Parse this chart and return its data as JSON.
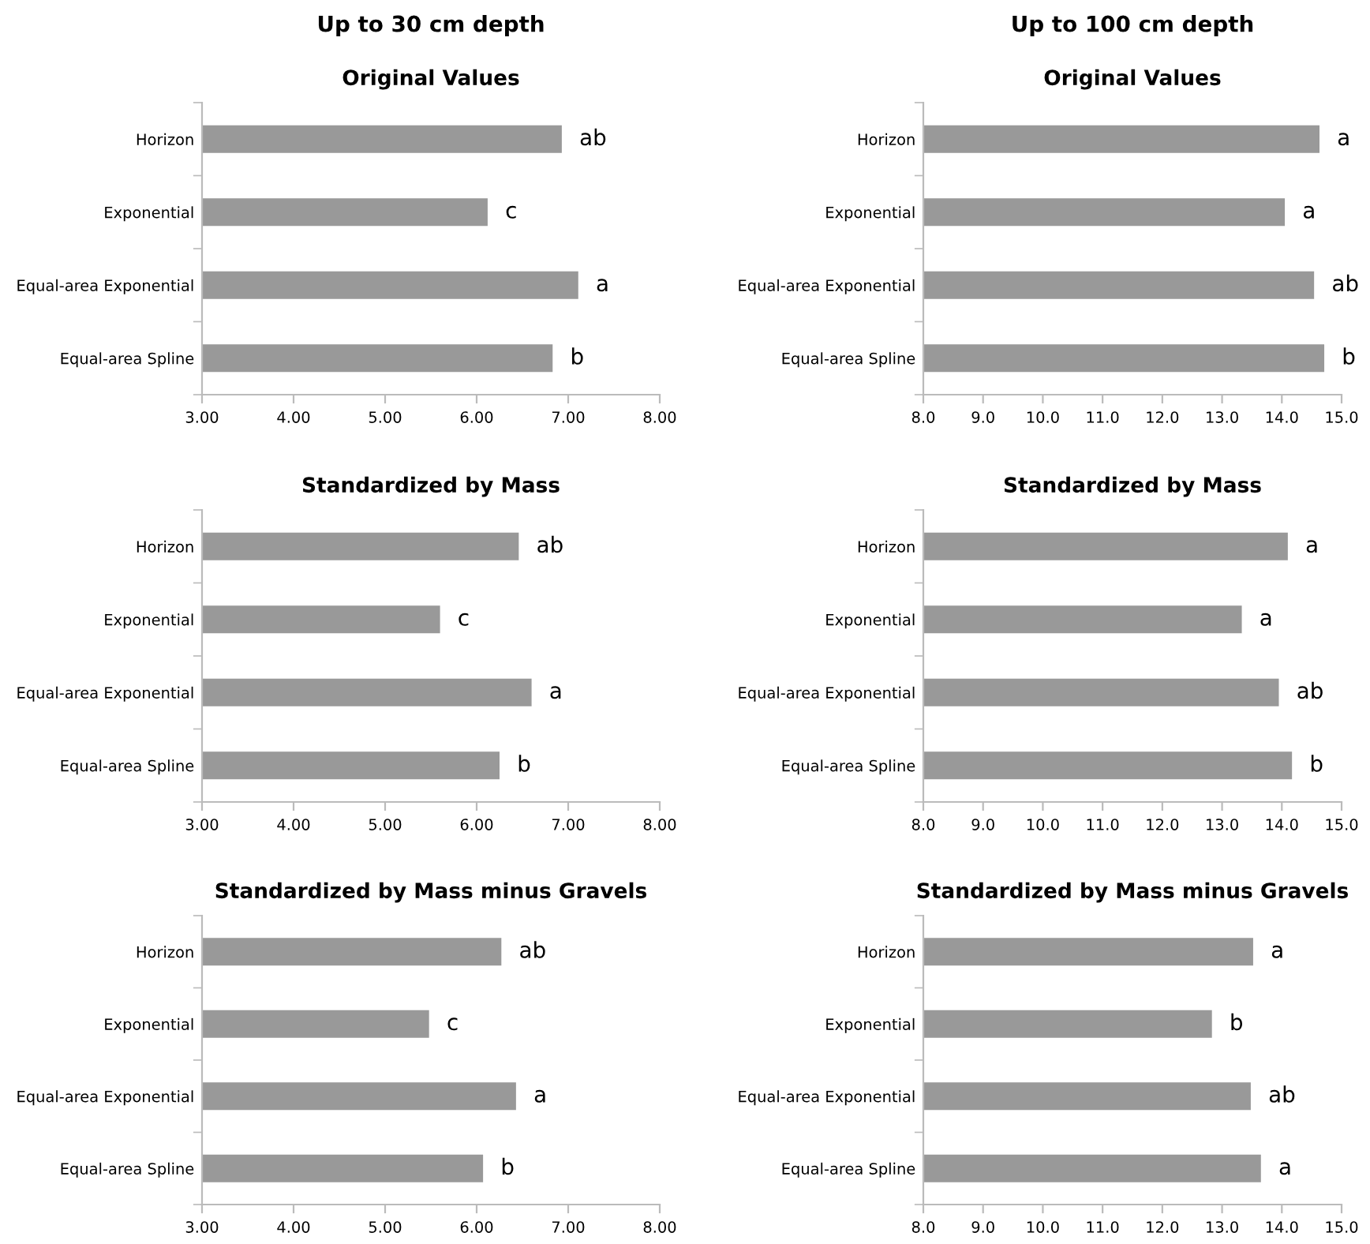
{
  "chart_data": [
    {
      "type": "bar",
      "orientation": "horizontal",
      "title": "Original Values",
      "annotations": [
        "Up to 30 cm depth"
      ],
      "categories": [
        "Horizon",
        "Exponential",
        "Equal-area Exponential",
        "Equal-area Spline"
      ],
      "values": [
        6.93,
        6.12,
        7.11,
        6.83
      ],
      "value_labels": [
        "ab",
        "c",
        "a",
        "b"
      ],
      "color": "#999999",
      "xlim": [
        3,
        8
      ],
      "xticks": [
        {
          "value": 3,
          "label": "3.00"
        },
        {
          "value": 4,
          "label": "4.00"
        },
        {
          "value": 5,
          "label": "5.00"
        },
        {
          "value": 6,
          "label": "6.00"
        },
        {
          "value": 7,
          "label": "7.00"
        },
        {
          "value": 8,
          "label": "8.00"
        }
      ],
      "grid": false,
      "legend": false
    },
    {
      "type": "bar",
      "orientation": "horizontal",
      "title": "Original Values",
      "annotations": [
        "Up to 100 cm depth"
      ],
      "categories": [
        "Horizon",
        "Exponential",
        "Equal-area Exponential",
        "Equal-area Spline"
      ],
      "values": [
        14.63,
        14.05,
        14.54,
        14.71
      ],
      "value_labels": [
        "a",
        "a",
        "ab",
        "b"
      ],
      "color": "#999999",
      "xlim": [
        8,
        15
      ],
      "xticks": [
        {
          "value": 8,
          "label": "8.0"
        },
        {
          "value": 9,
          "label": "9.0"
        },
        {
          "value": 10,
          "label": "10.0"
        },
        {
          "value": 11,
          "label": "11.0"
        },
        {
          "value": 12,
          "label": "12.0"
        },
        {
          "value": 13,
          "label": "13.0"
        },
        {
          "value": 14,
          "label": "14.0"
        },
        {
          "value": 15,
          "label": "15.0"
        }
      ],
      "grid": false,
      "legend": false
    },
    {
      "type": "bar",
      "orientation": "horizontal",
      "title": "Standardized by Mass",
      "categories": [
        "Horizon",
        "Exponential",
        "Equal-area Exponential",
        "Equal-area Spline"
      ],
      "values": [
        6.46,
        5.6,
        6.6,
        6.25
      ],
      "value_labels": [
        "ab",
        "c",
        "a",
        "b"
      ],
      "color": "#999999",
      "xlim": [
        3,
        8
      ],
      "xticks": [
        {
          "value": 3,
          "label": "3.00"
        },
        {
          "value": 4,
          "label": "4.00"
        },
        {
          "value": 5,
          "label": "5.00"
        },
        {
          "value": 6,
          "label": "6.00"
        },
        {
          "value": 7,
          "label": "7.00"
        },
        {
          "value": 8,
          "label": "8.00"
        }
      ],
      "grid": false,
      "legend": false
    },
    {
      "type": "bar",
      "orientation": "horizontal",
      "title": "Standardized by Mass",
      "categories": [
        "Horizon",
        "Exponential",
        "Equal-area Exponential",
        "Equal-area Spline"
      ],
      "values": [
        14.1,
        13.33,
        13.95,
        14.17
      ],
      "value_labels": [
        "a",
        "a",
        "ab",
        "b"
      ],
      "color": "#999999",
      "xlim": [
        8,
        15
      ],
      "xticks": [
        {
          "value": 8,
          "label": "8.0"
        },
        {
          "value": 9,
          "label": "9.0"
        },
        {
          "value": 10,
          "label": "10.0"
        },
        {
          "value": 11,
          "label": "11.0"
        },
        {
          "value": 12,
          "label": "12.0"
        },
        {
          "value": 13,
          "label": "13.0"
        },
        {
          "value": 14,
          "label": "14.0"
        },
        {
          "value": 15,
          "label": "15.0"
        }
      ],
      "grid": false,
      "legend": false
    },
    {
      "type": "bar",
      "orientation": "horizontal",
      "title": "Standardized by Mass minus Gravels",
      "categories": [
        "Horizon",
        "Exponential",
        "Equal-area Exponential",
        "Equal-area Spline"
      ],
      "values": [
        6.27,
        5.48,
        6.43,
        6.07
      ],
      "value_labels": [
        "ab",
        "c",
        "a",
        "b"
      ],
      "color": "#999999",
      "xlim": [
        3,
        8
      ],
      "xticks": [
        {
          "value": 3,
          "label": "3.00"
        },
        {
          "value": 4,
          "label": "4.00"
        },
        {
          "value": 5,
          "label": "5.00"
        },
        {
          "value": 6,
          "label": "6.00"
        },
        {
          "value": 7,
          "label": "7.00"
        },
        {
          "value": 8,
          "label": "8.00"
        }
      ],
      "grid": false,
      "legend": false
    },
    {
      "type": "bar",
      "orientation": "horizontal",
      "title": "Standardized by Mass minus Gravels",
      "categories": [
        "Horizon",
        "Exponential",
        "Equal-area Exponential",
        "Equal-area Spline"
      ],
      "values": [
        13.52,
        12.83,
        13.48,
        13.65
      ],
      "value_labels": [
        "a",
        "b",
        "ab",
        "a"
      ],
      "color": "#999999",
      "xlim": [
        8,
        15
      ],
      "xticks": [
        {
          "value": 8,
          "label": "8.0"
        },
        {
          "value": 9,
          "label": "9.0"
        },
        {
          "value": 10,
          "label": "10.0"
        },
        {
          "value": 11,
          "label": "11.0"
        },
        {
          "value": 12,
          "label": "12.0"
        },
        {
          "value": 13,
          "label": "13.0"
        },
        {
          "value": 14,
          "label": "14.0"
        },
        {
          "value": 15,
          "label": "15.0"
        }
      ],
      "grid": false,
      "legend": false
    }
  ]
}
